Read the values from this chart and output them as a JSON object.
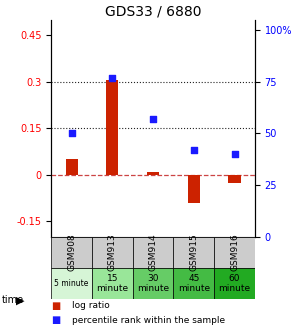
{
  "title": "GDS33 / 6880",
  "samples": [
    "GSM908",
    "GSM913",
    "GSM914",
    "GSM915",
    "GSM916"
  ],
  "time_labels": [
    "5 minute",
    "15\nminute",
    "30\nminute",
    "45\nminute",
    "60\nminute"
  ],
  "time_colors": [
    "#d6f5d6",
    "#99e699",
    "#66cc66",
    "#44bb44",
    "#22aa22"
  ],
  "log_ratio": [
    0.05,
    0.305,
    0.01,
    -0.09,
    -0.025
  ],
  "percentile_rank": [
    50,
    77,
    57,
    42,
    40
  ],
  "ylim_left": [
    -0.2,
    0.5
  ],
  "ylim_right": [
    0,
    105
  ],
  "yticks_left": [
    -0.15,
    0.0,
    0.15,
    0.3,
    0.45
  ],
  "yticks_right": [
    0,
    25,
    50,
    75,
    100
  ],
  "hline_y_left": [
    0.15,
    0.3
  ],
  "bar_color": "#cc2200",
  "scatter_color": "#1a1aff",
  "zero_line_color": "#cc4444",
  "grid_line_color": "#222222",
  "table_header_color": "#cccccc",
  "legend_bar_color": "#cc2200",
  "legend_scatter_color": "#1a1aff",
  "title_fontsize": 10,
  "tick_fontsize": 7,
  "table_fontsize": 6.5,
  "time_small_fontsize": 5.5
}
